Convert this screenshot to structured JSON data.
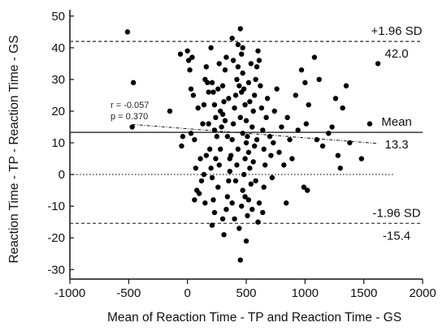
{
  "chart_data": {
    "type": "scatter",
    "title": "",
    "xlabel": "Mean of Reaction Time - TP and Reaction Time - GS",
    "ylabel": "Reaction Time - TP - Reaction Time - GS",
    "xlim": [
      -1000,
      2000
    ],
    "ylim": [
      -33,
      52
    ],
    "x_ticks": [
      -1000,
      -500,
      0,
      500,
      1000,
      1500,
      2000
    ],
    "y_ticks": [
      -30,
      -20,
      -10,
      0,
      10,
      20,
      30,
      40,
      50
    ],
    "grid": false,
    "reference_lines": [
      {
        "name": "upper_loa",
        "value": 42.0,
        "style": "dashed",
        "label_top": "+1.96 SD",
        "label_bottom": "42.0"
      },
      {
        "name": "mean",
        "value": 13.3,
        "style": "solid",
        "label_top": "Mean",
        "label_bottom": "13.3"
      },
      {
        "name": "zero",
        "value": 0,
        "style": "dotted"
      },
      {
        "name": "lower_loa",
        "value": -15.4,
        "style": "dashed",
        "label_top": "-1.96 SD",
        "label_bottom": "-15.4"
      }
    ],
    "regression": {
      "r_text": "r = -0.057",
      "p_text": "p = 0.370",
      "x": [
        -470,
        1620
      ],
      "y": [
        15.8,
        9.8
      ]
    },
    "points": [
      [
        -510,
        45
      ],
      [
        -460,
        29
      ],
      [
        -470,
        15
      ],
      [
        -150,
        20
      ],
      [
        -60,
        38
      ],
      [
        -50,
        9
      ],
      [
        -40,
        12
      ],
      [
        0,
        39
      ],
      [
        10,
        36
      ],
      [
        20,
        33
      ],
      [
        40,
        37
      ],
      [
        30,
        27
      ],
      [
        50,
        25
      ],
      [
        30,
        13
      ],
      [
        60,
        11
      ],
      [
        70,
        2
      ],
      [
        80,
        -5
      ],
      [
        60,
        -8
      ],
      [
        100,
        -6
      ],
      [
        120,
        -2
      ],
      [
        110,
        5
      ],
      [
        140,
        22
      ],
      [
        150,
        30
      ],
      [
        160,
        34
      ],
      [
        170,
        29
      ],
      [
        180,
        16
      ],
      [
        200,
        40
      ],
      [
        210,
        29
      ],
      [
        220,
        26
      ],
      [
        230,
        22
      ],
      [
        240,
        18
      ],
      [
        250,
        12
      ],
      [
        190,
        8
      ],
      [
        200,
        2
      ],
      [
        210,
        -1
      ],
      [
        220,
        -8
      ],
      [
        230,
        -12
      ],
      [
        210,
        -16
      ],
      [
        260,
        -4
      ],
      [
        270,
        3
      ],
      [
        280,
        8
      ],
      [
        290,
        15
      ],
      [
        300,
        19
      ],
      [
        310,
        23
      ],
      [
        300,
        28
      ],
      [
        320,
        33
      ],
      [
        330,
        37
      ],
      [
        300,
        -14
      ],
      [
        310,
        -19
      ],
      [
        330,
        -11
      ],
      [
        340,
        -7
      ],
      [
        350,
        -2
      ],
      [
        360,
        1
      ],
      [
        370,
        6
      ],
      [
        380,
        11
      ],
      [
        390,
        16
      ],
      [
        400,
        21
      ],
      [
        410,
        25
      ],
      [
        420,
        30
      ],
      [
        430,
        34
      ],
      [
        380,
        43
      ],
      [
        430,
        41
      ],
      [
        450,
        46
      ],
      [
        460,
        38
      ],
      [
        470,
        32
      ],
      [
        480,
        27
      ],
      [
        490,
        22
      ],
      [
        500,
        17
      ],
      [
        510,
        12
      ],
      [
        520,
        7
      ],
      [
        530,
        2
      ],
      [
        540,
        -3
      ],
      [
        520,
        -8
      ],
      [
        510,
        -13
      ],
      [
        500,
        -21
      ],
      [
        450,
        -27
      ],
      [
        440,
        -17
      ],
      [
        460,
        -10
      ],
      [
        470,
        -5
      ],
      [
        480,
        0
      ],
      [
        490,
        5
      ],
      [
        500,
        10
      ],
      [
        550,
        15
      ],
      [
        560,
        20
      ],
      [
        570,
        25
      ],
      [
        580,
        30
      ],
      [
        590,
        34
      ],
      [
        600,
        39
      ],
      [
        610,
        36
      ],
      [
        620,
        28
      ],
      [
        630,
        21
      ],
      [
        640,
        14
      ],
      [
        650,
        8
      ],
      [
        660,
        3
      ],
      [
        650,
        -4
      ],
      [
        640,
        -12
      ],
      [
        600,
        -15
      ],
      [
        670,
        18
      ],
      [
        680,
        24
      ],
      [
        700,
        12
      ],
      [
        710,
        6
      ],
      [
        720,
        -1
      ],
      [
        730,
        10
      ],
      [
        740,
        20
      ],
      [
        760,
        27
      ],
      [
        780,
        7
      ],
      [
        800,
        15
      ],
      [
        820,
        3
      ],
      [
        840,
        -9
      ],
      [
        850,
        18
      ],
      [
        870,
        11
      ],
      [
        890,
        5
      ],
      [
        920,
        25
      ],
      [
        940,
        14
      ],
      [
        970,
        33
      ],
      [
        1000,
        29
      ],
      [
        1010,
        16
      ],
      [
        1030,
        22
      ],
      [
        1080,
        37
      ],
      [
        1100,
        11
      ],
      [
        1120,
        30
      ],
      [
        1150,
        9
      ],
      [
        1200,
        13
      ],
      [
        1230,
        15
      ],
      [
        1260,
        24
      ],
      [
        1280,
        6
      ],
      [
        1300,
        2
      ],
      [
        1320,
        21
      ],
      [
        1350,
        28
      ],
      [
        1380,
        10
      ],
      [
        1480,
        5
      ],
      [
        1550,
        16
      ],
      [
        1620,
        35
      ],
      [
        990,
        -4
      ],
      [
        1020,
        -5
      ],
      [
        360,
        5
      ],
      [
        340,
        12
      ],
      [
        320,
        17
      ],
      [
        350,
        24
      ],
      [
        260,
        27
      ],
      [
        240,
        5
      ],
      [
        150,
        -9
      ],
      [
        130,
        16
      ],
      [
        90,
        21
      ],
      [
        410,
        -2
      ],
      [
        430,
        8
      ],
      [
        450,
        18
      ],
      [
        460,
        26
      ],
      [
        470,
        13
      ],
      [
        490,
        -7
      ],
      [
        520,
        29
      ],
      [
        530,
        23
      ],
      [
        540,
        35
      ],
      [
        560,
        4
      ],
      [
        580,
        -2
      ],
      [
        590,
        11
      ],
      [
        610,
        -9
      ],
      [
        470,
        40
      ],
      [
        390,
        36
      ],
      [
        280,
        20
      ],
      [
        270,
        35
      ],
      [
        180,
        26
      ],
      [
        160,
        6
      ],
      [
        140,
        0
      ],
      [
        230,
        14
      ],
      [
        380,
        -9
      ],
      [
        400,
        -14
      ],
      [
        420,
        3
      ],
      [
        440,
        28
      ],
      [
        550,
        -11
      ],
      [
        570,
        9
      ]
    ]
  }
}
